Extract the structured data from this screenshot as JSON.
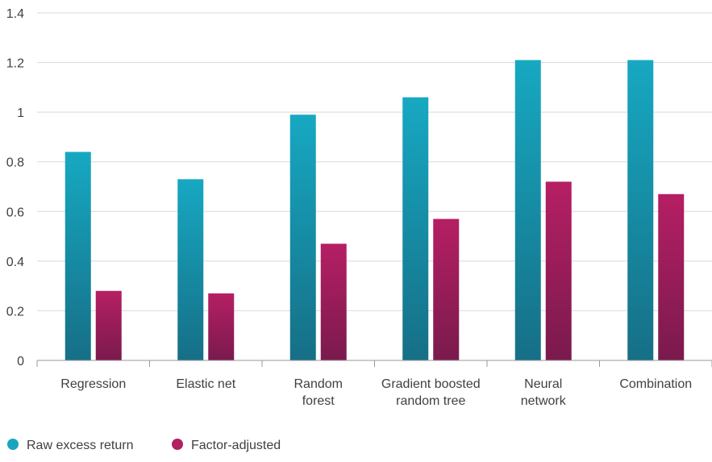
{
  "chart_data": {
    "type": "bar",
    "title": "",
    "xlabel": "",
    "ylabel": "",
    "categories": [
      [
        "Regression"
      ],
      [
        "Elastic net"
      ],
      [
        "Random",
        "forest"
      ],
      [
        "Gradient boosted",
        "random tree"
      ],
      [
        "Neural",
        "network"
      ],
      [
        "Combination"
      ]
    ],
    "series": [
      {
        "name": "Raw excess return",
        "color": "#1aa5be",
        "values": [
          0.84,
          0.73,
          0.99,
          1.06,
          1.21,
          1.21
        ]
      },
      {
        "name": "Factor-adjusted",
        "color": "#b0215f",
        "values": [
          0.28,
          0.27,
          0.47,
          0.57,
          0.72,
          0.67
        ]
      }
    ],
    "ylim": [
      0,
      1.4
    ],
    "yticks": [
      "0",
      "0.2",
      "0.4",
      "0.6",
      "0.8",
      "1",
      "1.2",
      "1.4"
    ],
    "grid": true,
    "legend": "bottom-left"
  }
}
